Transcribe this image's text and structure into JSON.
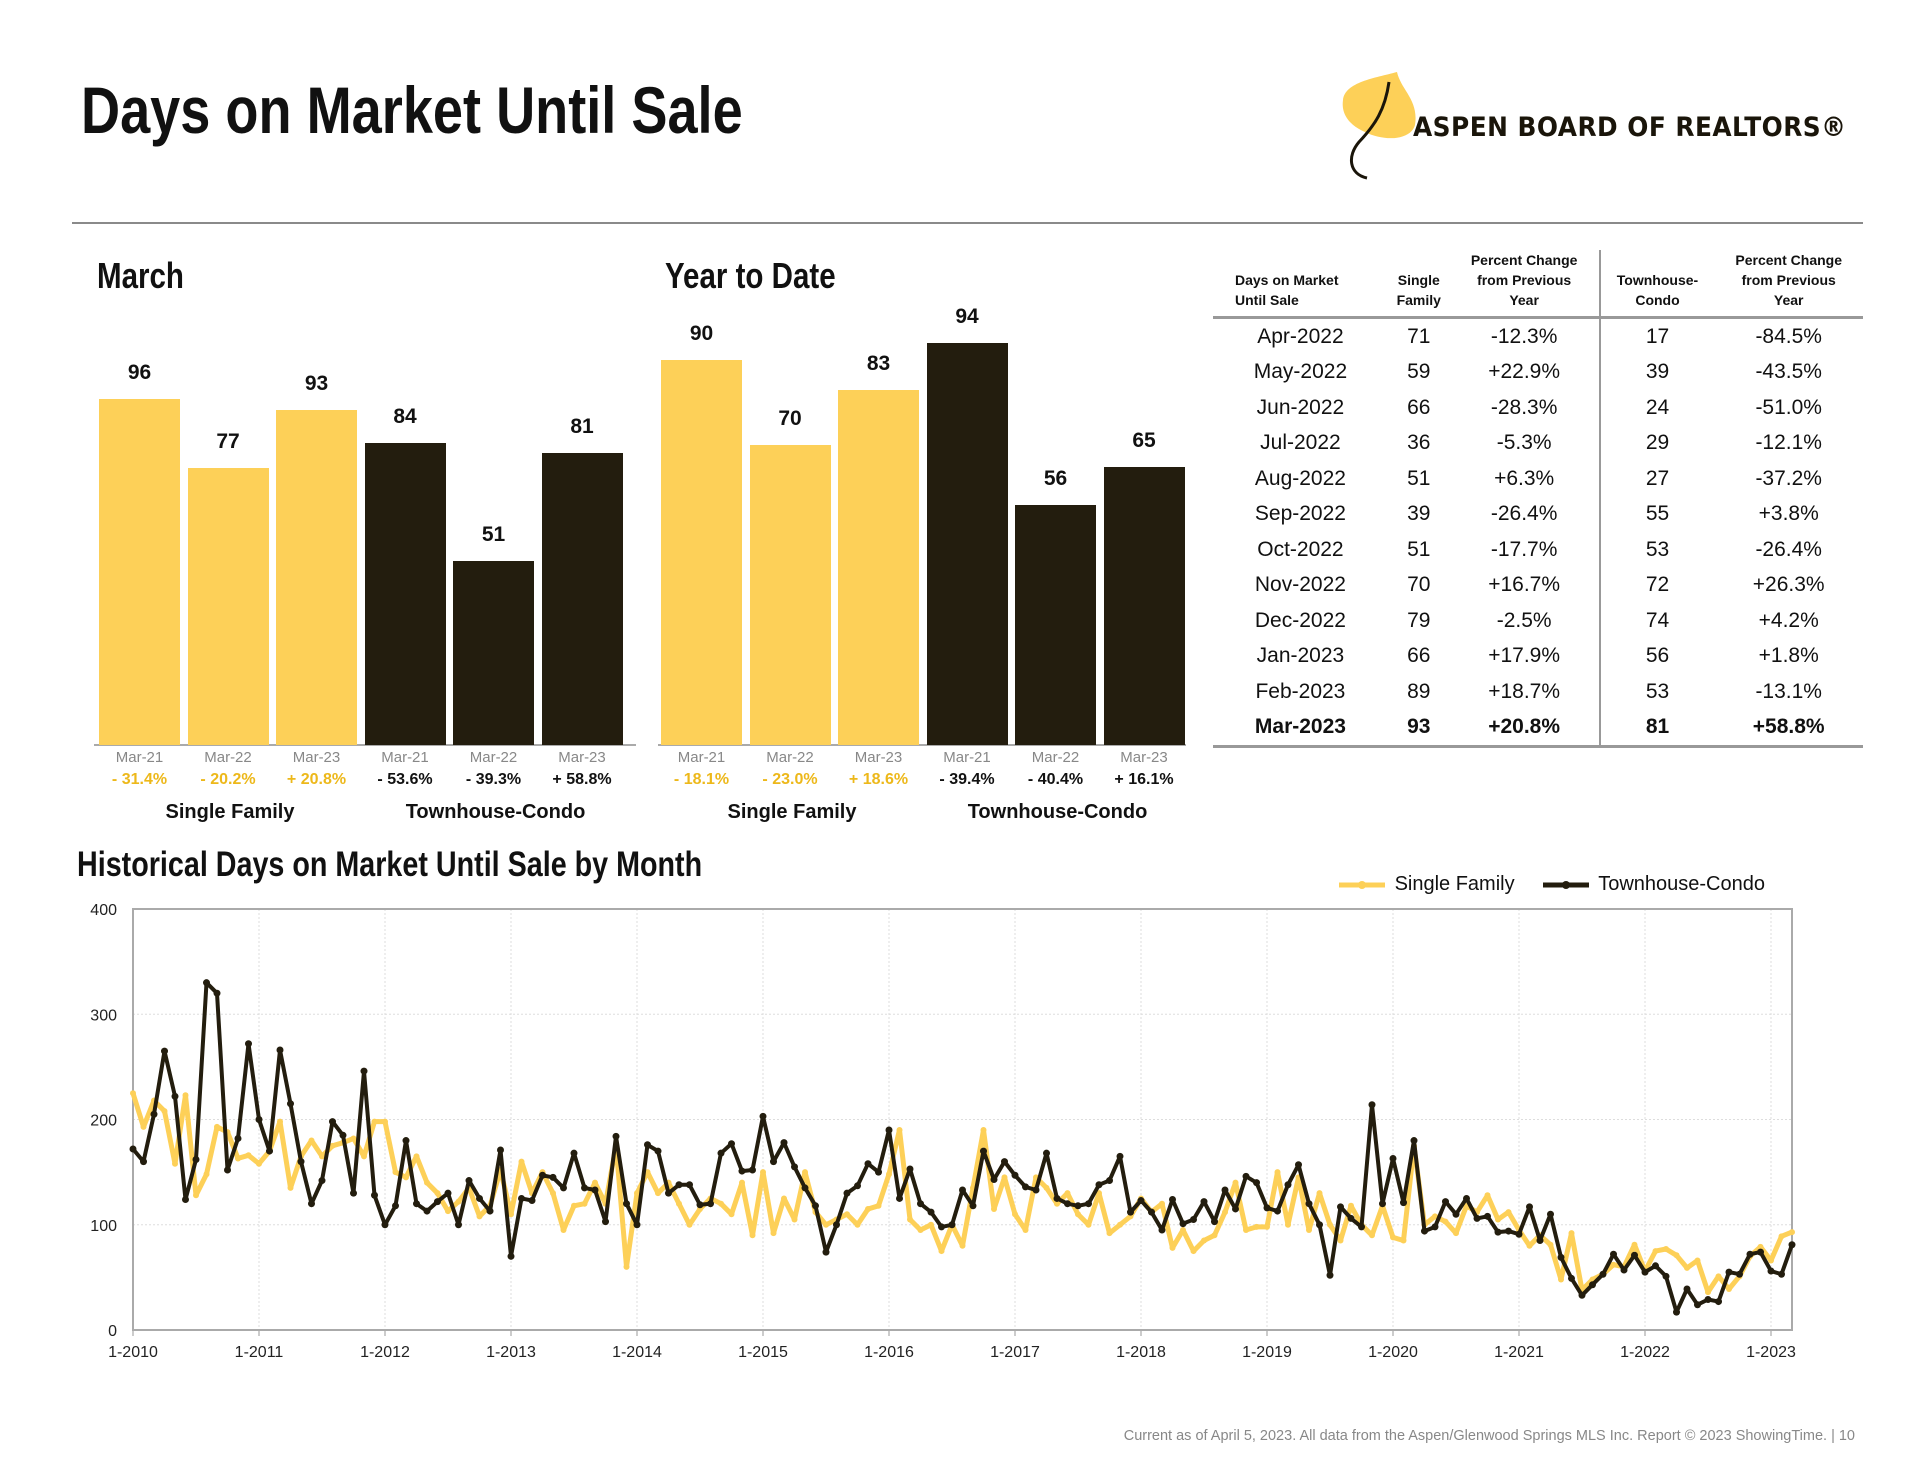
{
  "header": {
    "title": "Days on Market Until Sale",
    "logo_text": "ASPEN BOARD OF REALTORS®"
  },
  "colors": {
    "single_family": "#FDD058",
    "townhouse_condo": "#231D0E",
    "pct_yellow": "#EDB81A"
  },
  "chart_data": [
    {
      "type": "bar",
      "title": "March",
      "groups": [
        "Single Family",
        "Townhouse-Condo"
      ],
      "categories": [
        "Mar-21",
        "Mar-22",
        "Mar-23"
      ],
      "series": [
        {
          "name": "Single Family",
          "values": [
            96,
            77,
            93
          ],
          "pct_change": [
            "- 31.4%",
            "- 20.2%",
            "+ 20.8%"
          ]
        },
        {
          "name": "Townhouse-Condo",
          "values": [
            84,
            51,
            81
          ],
          "pct_change": [
            "- 53.6%",
            "- 39.3%",
            "+ 58.8%"
          ]
        }
      ]
    },
    {
      "type": "bar",
      "title": "Year to Date",
      "groups": [
        "Single Family",
        "Townhouse-Condo"
      ],
      "categories": [
        "Mar-21",
        "Mar-22",
        "Mar-23"
      ],
      "series": [
        {
          "name": "Single Family",
          "values": [
            90,
            70,
            83
          ],
          "pct_change": [
            "- 18.1%",
            "- 23.0%",
            "+ 18.6%"
          ]
        },
        {
          "name": "Townhouse-Condo",
          "values": [
            94,
            56,
            65
          ],
          "pct_change": [
            "- 39.4%",
            "- 40.4%",
            "+ 16.1%"
          ]
        }
      ]
    },
    {
      "type": "line",
      "title": "Historical Days on Market Until Sale by Month",
      "legend_position": "top-right",
      "grid": true,
      "ylim": [
        0,
        400
      ],
      "yticks": [
        0,
        100,
        200,
        300,
        400
      ],
      "xticks": [
        "1-2010",
        "1-2011",
        "1-2012",
        "1-2013",
        "1-2014",
        "1-2015",
        "1-2016",
        "1-2017",
        "1-2018",
        "1-2019",
        "1-2020",
        "1-2021",
        "1-2022",
        "1-2023"
      ],
      "x_start": "1-2010",
      "x_end": "3-2023",
      "series": [
        {
          "name": "Single Family",
          "values": [
            225,
            193,
            218,
            208,
            158,
            223,
            128,
            148,
            193,
            188,
            163,
            166,
            158,
            170,
            198,
            135,
            165,
            180,
            165,
            175,
            178,
            182,
            165,
            198,
            198,
            150,
            145,
            165,
            140,
            130,
            113,
            122,
            135,
            108,
            118,
            152,
            110,
            160,
            130,
            150,
            130,
            95,
            118,
            120,
            140,
            120,
            175,
            60,
            130,
            150,
            130,
            140,
            120,
            100,
            115,
            125,
            120,
            110,
            140,
            90,
            150,
            92,
            125,
            105,
            150,
            112,
            100,
            105,
            110,
            100,
            115,
            118,
            148,
            190,
            105,
            95,
            100,
            75,
            100,
            80,
            135,
            190,
            115,
            145,
            110,
            95,
            145,
            135,
            120,
            130,
            110,
            100,
            130,
            92,
            100,
            108,
            125,
            112,
            120,
            78,
            95,
            75,
            85,
            90,
            112,
            140,
            95,
            98,
            98,
            150,
            100,
            145,
            95,
            130,
            100,
            85,
            118,
            100,
            90,
            118,
            88,
            85,
            175,
            100,
            108,
            103,
            92,
            118,
            112,
            128,
            105,
            112,
            95,
            80,
            90,
            81,
            48,
            92,
            38,
            48,
            53,
            62,
            60,
            81,
            56,
            75,
            77,
            71,
            59,
            66,
            36,
            51,
            39,
            51,
            70,
            79,
            66,
            89,
            93
          ]
        },
        {
          "name": "Townhouse-Condo",
          "values": [
            172,
            160,
            205,
            265,
            222,
            124,
            162,
            330,
            320,
            152,
            182,
            272,
            200,
            170,
            266,
            215,
            160,
            120,
            142,
            198,
            185,
            130,
            246,
            128,
            100,
            118,
            180,
            120,
            113,
            122,
            130,
            100,
            142,
            125,
            113,
            171,
            70,
            125,
            123,
            147,
            145,
            135,
            168,
            135,
            133,
            103,
            184,
            120,
            100,
            176,
            170,
            130,
            138,
            138,
            119,
            120,
            168,
            177,
            151,
            152,
            203,
            160,
            178,
            155,
            135,
            118,
            74,
            100,
            130,
            137,
            158,
            150,
            190,
            125,
            153,
            120,
            112,
            98,
            100,
            133,
            118,
            170,
            143,
            160,
            147,
            136,
            133,
            168,
            125,
            120,
            118,
            120,
            138,
            142,
            165,
            112,
            123,
            112,
            95,
            124,
            101,
            105,
            122,
            103,
            133,
            115,
            146,
            140,
            116,
            113,
            138,
            157,
            120,
            100,
            52,
            117,
            106,
            98,
            214,
            120,
            163,
            121,
            180,
            94,
            98,
            122,
            110,
            125,
            106,
            108,
            93,
            94,
            91,
            117,
            85,
            110,
            69,
            49,
            33,
            43,
            53,
            72,
            57,
            71,
            55,
            61,
            51,
            17,
            39,
            24,
            29,
            27,
            55,
            53,
            72,
            74,
            56,
            53,
            81
          ]
        }
      ]
    }
  ],
  "table": {
    "headers": [
      "Days on Market\nUntil Sale",
      "Single\nFamily",
      "Percent Change\nfrom Previous\nYear",
      "Townhouse-\nCondo",
      "Percent Change\nfrom Previous\nYear"
    ],
    "rows": [
      [
        "Apr-2022",
        "71",
        "-12.3%",
        "17",
        "-84.5%"
      ],
      [
        "May-2022",
        "59",
        "+22.9%",
        "39",
        "-43.5%"
      ],
      [
        "Jun-2022",
        "66",
        "-28.3%",
        "24",
        "-51.0%"
      ],
      [
        "Jul-2022",
        "36",
        "-5.3%",
        "29",
        "-12.1%"
      ],
      [
        "Aug-2022",
        "51",
        "+6.3%",
        "27",
        "-37.2%"
      ],
      [
        "Sep-2022",
        "39",
        "-26.4%",
        "55",
        "+3.8%"
      ],
      [
        "Oct-2022",
        "51",
        "-17.7%",
        "53",
        "-26.4%"
      ],
      [
        "Nov-2022",
        "70",
        "+16.7%",
        "72",
        "+26.3%"
      ],
      [
        "Dec-2022",
        "79",
        "-2.5%",
        "74",
        "+4.2%"
      ],
      [
        "Jan-2023",
        "66",
        "+17.9%",
        "56",
        "+1.8%"
      ],
      [
        "Feb-2023",
        "89",
        "+18.7%",
        "53",
        "-13.1%"
      ],
      [
        "Mar-2023",
        "93",
        "+20.8%",
        "81",
        "+58.8%"
      ]
    ]
  },
  "footer": "Current as of April 5, 2023. All data from the Aspen/Glenwood Springs MLS Inc. Report © 2023 ShowingTime.  |  10"
}
